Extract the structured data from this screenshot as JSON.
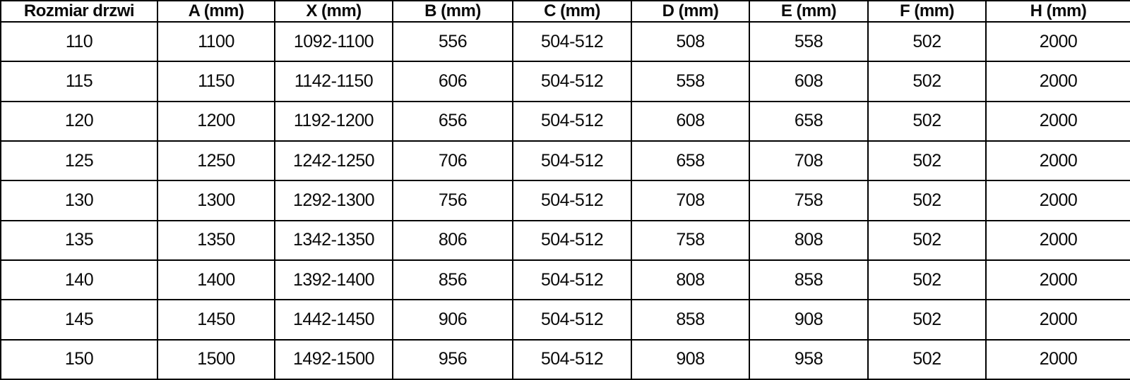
{
  "table": {
    "name": "door-dimensions-table",
    "headers": [
      "Rozmiar drzwi",
      "A (mm)",
      "X (mm)",
      "B (mm)",
      "C (mm)",
      "D (mm)",
      "E (mm)",
      "F (mm)",
      "H (mm)"
    ],
    "rows": [
      [
        "110",
        "1100",
        "1092-1100",
        "556",
        "504-512",
        "508",
        "558",
        "502",
        "2000"
      ],
      [
        "115",
        "1150",
        "1142-1150",
        "606",
        "504-512",
        "558",
        "608",
        "502",
        "2000"
      ],
      [
        "120",
        "1200",
        "1192-1200",
        "656",
        "504-512",
        "608",
        "658",
        "502",
        "2000"
      ],
      [
        "125",
        "1250",
        "1242-1250",
        "706",
        "504-512",
        "658",
        "708",
        "502",
        "2000"
      ],
      [
        "130",
        "1300",
        "1292-1300",
        "756",
        "504-512",
        "708",
        "758",
        "502",
        "2000"
      ],
      [
        "135",
        "1350",
        "1342-1350",
        "806",
        "504-512",
        "758",
        "808",
        "502",
        "2000"
      ],
      [
        "140",
        "1400",
        "1392-1400",
        "856",
        "504-512",
        "808",
        "858",
        "502",
        "2000"
      ],
      [
        "145",
        "1450",
        "1442-1450",
        "906",
        "504-512",
        "858",
        "908",
        "502",
        "2000"
      ],
      [
        "150",
        "1500",
        "1492-1500",
        "956",
        "504-512",
        "908",
        "958",
        "502",
        "2000"
      ]
    ],
    "colors": {
      "border": "#000000",
      "text": "#0a0a0a",
      "background": "#ffffff"
    }
  }
}
